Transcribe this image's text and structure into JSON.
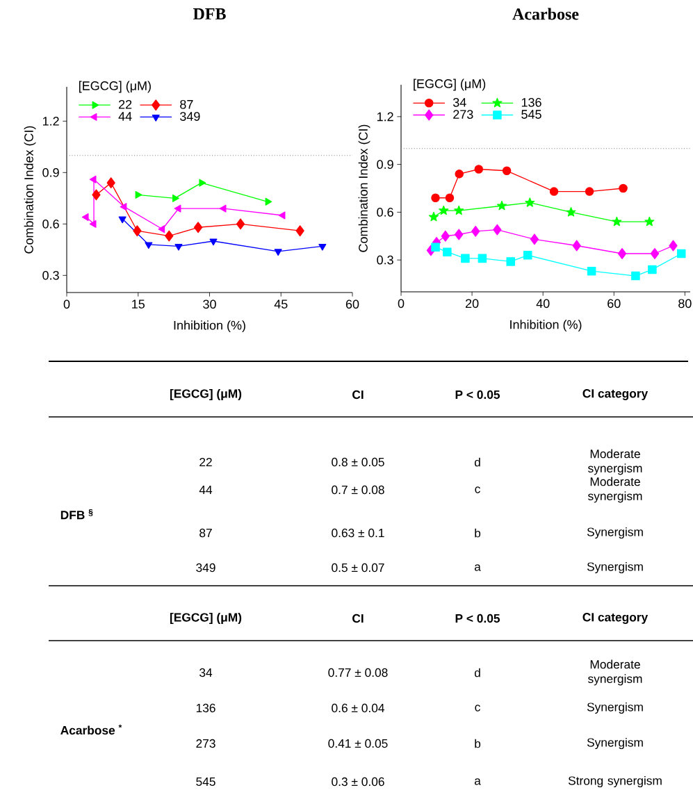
{
  "chart_data": [
    {
      "type": "line",
      "title": "DFB",
      "xlabel": "Inhibition (%)",
      "ylabel": "Combination Index (CI)",
      "legend_title": "[EGCG] (μM)",
      "legend": "top left",
      "xlim": [
        0,
        60
      ],
      "ylim": [
        0.2,
        1.4
      ],
      "xticks": [
        0,
        15,
        30,
        45,
        60
      ],
      "yticks": [
        0.3,
        0.6,
        0.9,
        1.2
      ],
      "ref_lines": [
        {
          "axis": "y",
          "value": 1,
          "line_style": "dotted",
          "color": "#808080"
        }
      ],
      "series": [
        {
          "name": "22",
          "color": "#00ff00",
          "marker": "triangle-right",
          "line_style": "solid",
          "x": [
            14.9,
            22.7,
            28.3,
            42.2
          ],
          "values": [
            0.77,
            0.75,
            0.84,
            0.73
          ]
        },
        {
          "name": "87",
          "color": "#ff0000",
          "marker": "diamond",
          "line_style": "solid",
          "x": [
            6.2,
            9.3,
            14.8,
            21.5,
            27.6,
            36.5,
            49.0
          ],
          "values": [
            0.77,
            0.84,
            0.56,
            0.53,
            0.58,
            0.6,
            0.56
          ]
        },
        {
          "name": "44",
          "color": "#ff00ff",
          "marker": "triangle-left",
          "line_style": "solid",
          "x": [
            4.1,
            5.7,
            5.7,
            12.1,
            20.1,
            23.5,
            33.0,
            45.4
          ],
          "values": [
            0.64,
            0.6,
            0.86,
            0.7,
            0.57,
            0.69,
            0.69,
            0.65
          ]
        },
        {
          "name": "349",
          "color": "#0000ff",
          "marker": "triangle-down",
          "line_style": "solid",
          "x": [
            11.7,
            17.2,
            23.5,
            30.8,
            44.4,
            53.7
          ],
          "values": [
            0.63,
            0.48,
            0.47,
            0.5,
            0.44,
            0.47
          ]
        }
      ]
    },
    {
      "type": "line",
      "title": "Acarbose",
      "xlabel": "Inhibition (%)",
      "ylabel": "Combination Index (CI)",
      "legend_title": "[EGCG] (μM)",
      "legend": "top left",
      "xlim": [
        0,
        81.5
      ],
      "ylim": [
        0.1,
        1.4
      ],
      "xticks": [
        0,
        20,
        40,
        60,
        80
      ],
      "yticks": [
        0.3,
        0.6,
        0.9,
        1.2
      ],
      "ref_lines": [
        {
          "axis": "y",
          "value": 1,
          "line_style": "dotted",
          "color": "#808080"
        }
      ],
      "series": [
        {
          "name": "34",
          "color": "#ff0000",
          "marker": "circle",
          "line_style": "solid",
          "x": [
            9.7,
            13.7,
            16.4,
            21.9,
            29.8,
            43.1,
            53.1,
            62.6
          ],
          "values": [
            0.69,
            0.69,
            0.84,
            0.87,
            0.86,
            0.73,
            0.73,
            0.75
          ]
        },
        {
          "name": "136",
          "color": "#00ff00",
          "marker": "star",
          "line_style": "solid",
          "x": [
            9.2,
            12.0,
            16.3,
            28.4,
            36.3,
            47.9,
            60.8,
            70.0
          ],
          "values": [
            0.57,
            0.61,
            0.61,
            0.64,
            0.66,
            0.6,
            0.54,
            0.54
          ]
        },
        {
          "name": "273",
          "color": "#ff00ff",
          "marker": "diamond",
          "line_style": "solid",
          "x": [
            8.4,
            10.0,
            12.5,
            16.3,
            21.0,
            27.1,
            37.6,
            49.5,
            62.3,
            71.5,
            76.7
          ],
          "values": [
            0.36,
            0.41,
            0.45,
            0.46,
            0.48,
            0.49,
            0.43,
            0.39,
            0.34,
            0.34,
            0.39
          ]
        },
        {
          "name": "545",
          "color": "#00ffff",
          "marker": "square",
          "line_style": "solid",
          "x": [
            9.7,
            13.0,
            18.1,
            22.9,
            30.9,
            35.7,
            53.7,
            66.1,
            70.8,
            79.0
          ],
          "values": [
            0.38,
            0.35,
            0.31,
            0.31,
            0.29,
            0.33,
            0.23,
            0.2,
            0.24,
            0.34
          ]
        }
      ]
    },
    {
      "type": "other",
      "annotations": [
        "[EGCG] (μM)",
        "CI",
        "P < 0.05",
        "CI category",
        "DFB $^{§}$",
        "22",
        "0.8 ± 0.05",
        "d",
        "Moderate synergism",
        "44",
        "0.7 ± 0.08",
        "c",
        "Moderate synergism",
        "87",
        "0.63 ± 0.1",
        "b",
        "Synergism",
        "349",
        "0.5 ± 0.07",
        "a",
        "Synergism",
        "[EGCG] (μM)",
        "CI",
        "P < 0.05",
        "CI category",
        "Acarbose $^{*}$",
        "34",
        "0.77 ± 0.08",
        "d",
        "Moderate synergism",
        "136",
        "0.6 ± 0.04",
        "c",
        "Synergism",
        "273",
        "0.41 ± 0.05",
        "b",
        "Synergism",
        "545",
        "0.3 ± 0.06",
        "a",
        "Strong synergism"
      ]
    }
  ]
}
